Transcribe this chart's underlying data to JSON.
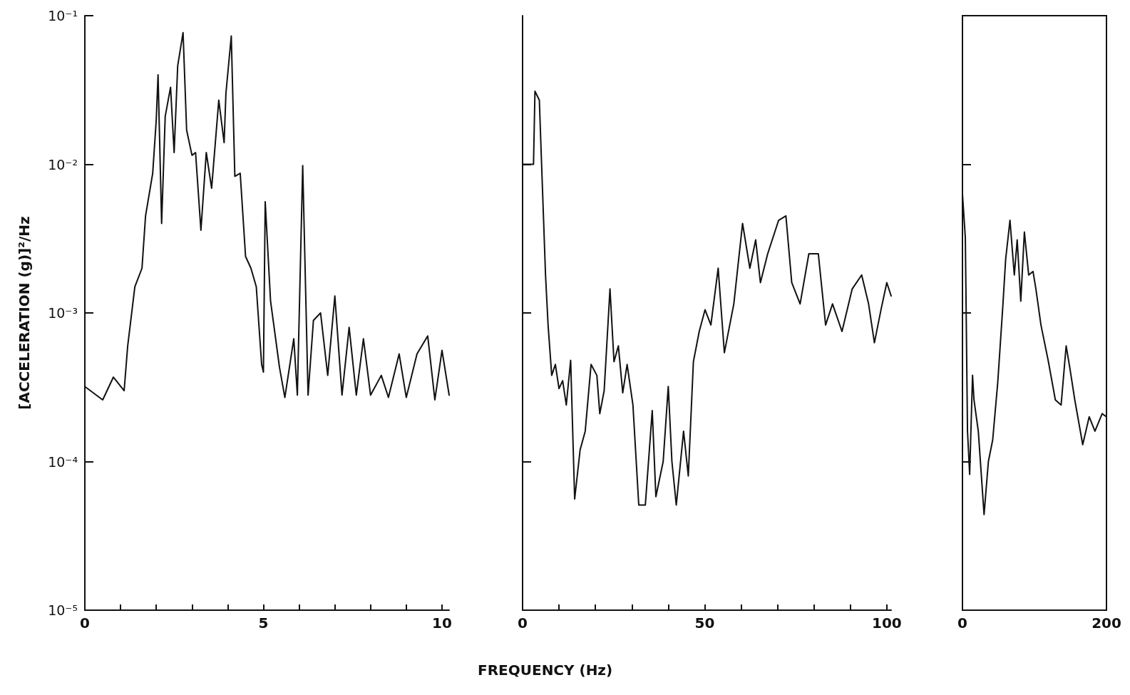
{
  "chart_data": [
    {
      "type": "line",
      "ylabel": "[ACCELERATION (g)]²/Hz",
      "marker": "none",
      "line_style": "solid",
      "grid": false,
      "xlim": [
        0,
        10.2
      ],
      "xticks": [
        0,
        {
          "value": 1,
          "label": null
        },
        {
          "value": 2,
          "label": null
        },
        {
          "value": 3,
          "label": null
        },
        {
          "value": 4,
          "label": null
        },
        5,
        {
          "value": 6,
          "label": null
        },
        {
          "value": 7,
          "label": null
        },
        {
          "value": 8,
          "label": null
        },
        {
          "value": 9,
          "label": null
        },
        10
      ],
      "ylim": [
        1e-05,
        0.1
      ],
      "yticks": [
        {
          "value": 1e-05,
          "label": "10⁻⁵"
        },
        {
          "value": 0.0001,
          "label": "10⁻⁴"
        },
        {
          "value": 0.001,
          "label": "10⁻³"
        },
        {
          "value": 0.01,
          "label": "10⁻²"
        },
        {
          "value": 0.1,
          "label": "10⁻¹"
        }
      ],
      "log": "y",
      "x": [
        0,
        0.5,
        0.8,
        1.1,
        1.2,
        1.4,
        1.6,
        1.7,
        1.9,
        2.0,
        2.05,
        2.15,
        2.25,
        2.4,
        2.5,
        2.6,
        2.75,
        2.85,
        3.0,
        3.1,
        3.25,
        3.4,
        3.55,
        3.75,
        3.9,
        3.95,
        4.1,
        4.2,
        4.35,
        4.5,
        4.65,
        4.8,
        4.95,
        5.0,
        5.05,
        5.2,
        5.45,
        5.6,
        5.85,
        5.95,
        6.1,
        6.25,
        6.4,
        6.6,
        6.8,
        7.0,
        7.2,
        7.4,
        7.6,
        7.8,
        8.0,
        8.3,
        8.5,
        8.8,
        9.0,
        9.3,
        9.6,
        9.8,
        10.0,
        10.2
      ],
      "series": [
        {
          "color": "#111111",
          "values": [
            0.00032,
            0.00026,
            0.00037,
            0.0003,
            0.0006,
            0.0015,
            0.002,
            0.0045,
            0.0087,
            0.02,
            0.04,
            0.004,
            0.021,
            0.033,
            0.012,
            0.046,
            0.077,
            0.017,
            0.0115,
            0.012,
            0.0036,
            0.012,
            0.0069,
            0.027,
            0.014,
            0.03,
            0.073,
            0.0083,
            0.0087,
            0.0024,
            0.002,
            0.0015,
            0.00045,
            0.0004,
            0.0056,
            0.0012,
            0.00043,
            0.00027,
            0.00067,
            0.00028,
            0.0098,
            0.00028,
            0.00089,
            0.001,
            0.00038,
            0.0013,
            0.00028,
            0.0008,
            0.00028,
            0.00067,
            0.00028,
            0.00038,
            0.00027,
            0.00053,
            0.00027,
            0.00053,
            0.0007,
            0.00026,
            0.00056,
            0.00028
          ]
        }
      ]
    },
    {
      "type": "line",
      "xlabel": "FREQUENCY (Hz)",
      "marker": "none",
      "line_style": "solid",
      "grid": false,
      "tick_labels": "x",
      "xlim": [
        0,
        101.2
      ],
      "xticks": [
        0,
        {
          "value": 10,
          "label": null
        },
        {
          "value": 20,
          "label": null
        },
        {
          "value": 30,
          "label": null
        },
        {
          "value": 40,
          "label": null
        },
        50,
        {
          "value": 60,
          "label": null
        },
        {
          "value": 70,
          "label": null
        },
        {
          "value": 80,
          "label": null
        },
        {
          "value": 90,
          "label": null
        },
        100
      ],
      "ylim": [
        1e-05,
        0.1
      ],
      "yticks": [
        {
          "value": 0.0001,
          "label": null
        },
        {
          "value": 0.001,
          "label": null
        },
        {
          "value": 0.01,
          "label": null
        }
      ],
      "log": "y",
      "x": [
        0,
        3,
        3.4,
        4.6,
        6.3,
        7,
        8,
        9,
        10,
        11,
        12,
        13.2,
        14.3,
        15.8,
        17.2,
        18.8,
        20.4,
        21.2,
        22.4,
        24,
        25.1,
        26.3,
        27.5,
        28.7,
        30.3,
        31.9,
        33.7,
        35.6,
        36.6,
        38.6,
        40,
        41,
        42.2,
        44.2,
        45.5,
        46.9,
        48.5,
        50.1,
        51.7,
        53.7,
        55.4,
        58,
        60.4,
        62.4,
        64,
        65.3,
        67.3,
        70.3,
        72.3,
        73.9,
        76.2,
        78.6,
        81.2,
        83.2,
        85.1,
        87.7,
        90.5,
        93.1,
        95,
        96.6,
        98.4,
        100,
        101.2
      ],
      "series": [
        {
          "color": "#111111",
          "values": [
            0.01,
            0.01,
            0.031,
            0.027,
            0.0018,
            0.00083,
            0.00038,
            0.00045,
            0.00031,
            0.00035,
            0.00024,
            0.00048,
            5.6e-05,
            0.00012,
            0.00016,
            0.00045,
            0.00038,
            0.00021,
            0.0003,
            0.00145,
            0.00047,
            0.0006,
            0.00029,
            0.00045,
            0.00024,
            5.1e-05,
            5.1e-05,
            0.00022,
            5.8e-05,
            0.0001,
            0.00032,
            0.0001,
            5.1e-05,
            0.00016,
            8e-05,
            0.00047,
            0.00075,
            0.00105,
            0.00083,
            0.002,
            0.00054,
            0.00115,
            0.004,
            0.002,
            0.0031,
            0.0016,
            0.0025,
            0.0042,
            0.0045,
            0.0016,
            0.00115,
            0.0025,
            0.0025,
            0.00083,
            0.00115,
            0.00075,
            0.00145,
            0.0018,
            0.00115,
            0.00063,
            0.00105,
            0.0016,
            0.0013
          ]
        }
      ]
    },
    {
      "type": "line",
      "marker": "none",
      "line_style": "solid",
      "grid": false,
      "tick_labels": "x",
      "xlim": [
        0,
        200
      ],
      "xticks": [
        0,
        200
      ],
      "ylim": [
        1e-05,
        0.1
      ],
      "yticks": [
        {
          "value": 0.0001,
          "label": null
        },
        {
          "value": 0.001,
          "label": null
        },
        {
          "value": 0.01,
          "label": null
        }
      ],
      "log": "y",
      "x": [
        0,
        4,
        7,
        10,
        14,
        16,
        22,
        30,
        36,
        42,
        49,
        56,
        60,
        66,
        72,
        76,
        81,
        86,
        92,
        98,
        102,
        109,
        119,
        129,
        137,
        144,
        149,
        156,
        167,
        176,
        184,
        194,
        200
      ],
      "series": [
        {
          "color": "#111111",
          "values": [
            0.0063,
            0.0032,
            0.00016,
            8.2e-05,
            0.00038,
            0.00026,
            0.00016,
            4.4e-05,
            0.0001,
            0.00014,
            0.00034,
            0.0011,
            0.0023,
            0.0042,
            0.0018,
            0.0031,
            0.0012,
            0.0035,
            0.0018,
            0.0019,
            0.00145,
            0.00083,
            0.00048,
            0.00026,
            0.00024,
            0.0006,
            0.00043,
            0.00026,
            0.00013,
            0.0002,
            0.00016,
            0.00021,
            0.0002
          ]
        }
      ]
    }
  ]
}
